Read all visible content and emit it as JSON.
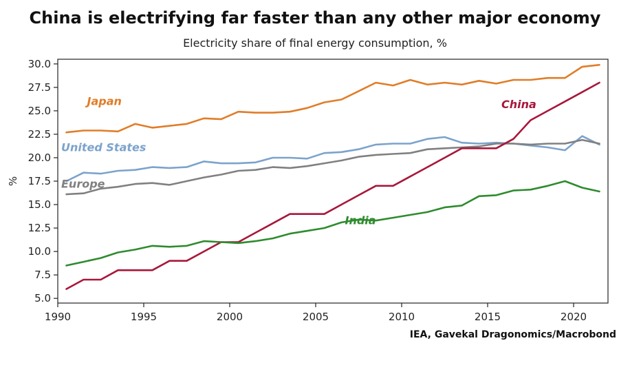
{
  "chart_data": {
    "type": "line",
    "title": "China is electrifying far faster than any other major economy",
    "subtitle": "Electricity share of final energy consumption, %",
    "source": "IEA, Gavekal Dragonomics/Macrobond",
    "ylabel": "%",
    "xlabel": "",
    "xlim": [
      1990,
      2022
    ],
    "ylim": [
      4.5,
      30.5
    ],
    "x_ticks": [
      1990,
      1995,
      2000,
      2005,
      2010,
      2015,
      2020
    ],
    "y_ticks": [
      "5.0",
      "7.5",
      "10.0",
      "12.5",
      "15.0",
      "17.5",
      "20.0",
      "22.5",
      "25.0",
      "27.5",
      "30.0"
    ],
    "grid": false,
    "x": [
      1990.5,
      1991.5,
      1992.5,
      1993.5,
      1994.5,
      1995.5,
      1996.5,
      1997.5,
      1998.5,
      1999.5,
      2000.5,
      2001.5,
      2002.5,
      2003.5,
      2004.5,
      2005.5,
      2006.5,
      2007.5,
      2008.5,
      2009.5,
      2010.5,
      2011.5,
      2012.5,
      2013.5,
      2014.5,
      2015.5,
      2016.5,
      2017.5,
      2018.5,
      2019.5,
      2020.5,
      2021.5
    ],
    "series": [
      {
        "name": "Japan",
        "color": "#e07d28",
        "values": [
          22.7,
          22.9,
          22.9,
          22.8,
          23.6,
          23.2,
          23.4,
          23.6,
          24.2,
          24.1,
          24.9,
          24.8,
          24.8,
          24.9,
          25.3,
          25.9,
          26.2,
          27.1,
          28.0,
          27.7,
          28.3,
          27.8,
          28.0,
          27.8,
          28.2,
          27.9,
          28.3,
          28.3,
          28.5,
          28.5,
          29.7,
          29.9
        ]
      },
      {
        "name": "United States",
        "color": "#7ba3cc",
        "values": [
          17.5,
          18.4,
          18.3,
          18.6,
          18.7,
          19.0,
          18.9,
          19.0,
          19.6,
          19.4,
          19.4,
          19.5,
          20.0,
          20.0,
          19.9,
          20.5,
          20.6,
          20.9,
          21.4,
          21.5,
          21.5,
          22.0,
          22.2,
          21.6,
          21.5,
          21.6,
          21.5,
          21.3,
          21.1,
          20.8,
          22.3,
          21.4
        ]
      },
      {
        "name": "Europe",
        "color": "#808080",
        "values": [
          16.1,
          16.2,
          16.7,
          16.9,
          17.2,
          17.3,
          17.1,
          17.5,
          17.9,
          18.2,
          18.6,
          18.7,
          19.0,
          18.9,
          19.1,
          19.4,
          19.7,
          20.1,
          20.3,
          20.4,
          20.5,
          20.9,
          21.0,
          21.1,
          21.2,
          21.5,
          21.5,
          21.4,
          21.5,
          21.5,
          21.9,
          21.5
        ]
      },
      {
        "name": "China",
        "color": "#a8173a",
        "values": [
          6.0,
          7.0,
          7.0,
          8.0,
          8.0,
          8.0,
          9.0,
          9.0,
          10.0,
          11.0,
          11.0,
          12.0,
          13.0,
          14.0,
          14.0,
          14.0,
          15.0,
          16.0,
          17.0,
          17.0,
          18.0,
          19.0,
          20.0,
          21.0,
          21.0,
          21.0,
          22.0,
          24.0,
          25.0,
          26.0,
          27.0,
          28.0
        ]
      },
      {
        "name": "India",
        "color": "#2e8b2e",
        "values": [
          8.5,
          8.9,
          9.3,
          9.9,
          10.2,
          10.6,
          10.5,
          10.6,
          11.1,
          11.0,
          10.9,
          11.1,
          11.4,
          11.9,
          12.2,
          12.5,
          13.1,
          13.4,
          13.3,
          13.6,
          13.9,
          14.2,
          14.7,
          14.9,
          15.9,
          16.0,
          16.5,
          16.6,
          17.0,
          17.5,
          16.8,
          16.4
        ]
      }
    ],
    "labels": [
      {
        "text": "Japan",
        "series": "Japan",
        "x": 1991.7,
        "y": 25.6
      },
      {
        "text": "China",
        "series": "China",
        "x": 2015.8,
        "y": 25.3
      },
      {
        "text": "United States",
        "series": "United States",
        "x": 1990.2,
        "y": 20.7
      },
      {
        "text": "Europe",
        "series": "Europe",
        "x": 1990.2,
        "y": 16.8
      },
      {
        "text": "India",
        "series": "India",
        "x": 2006.7,
        "y": 12.9
      }
    ]
  }
}
